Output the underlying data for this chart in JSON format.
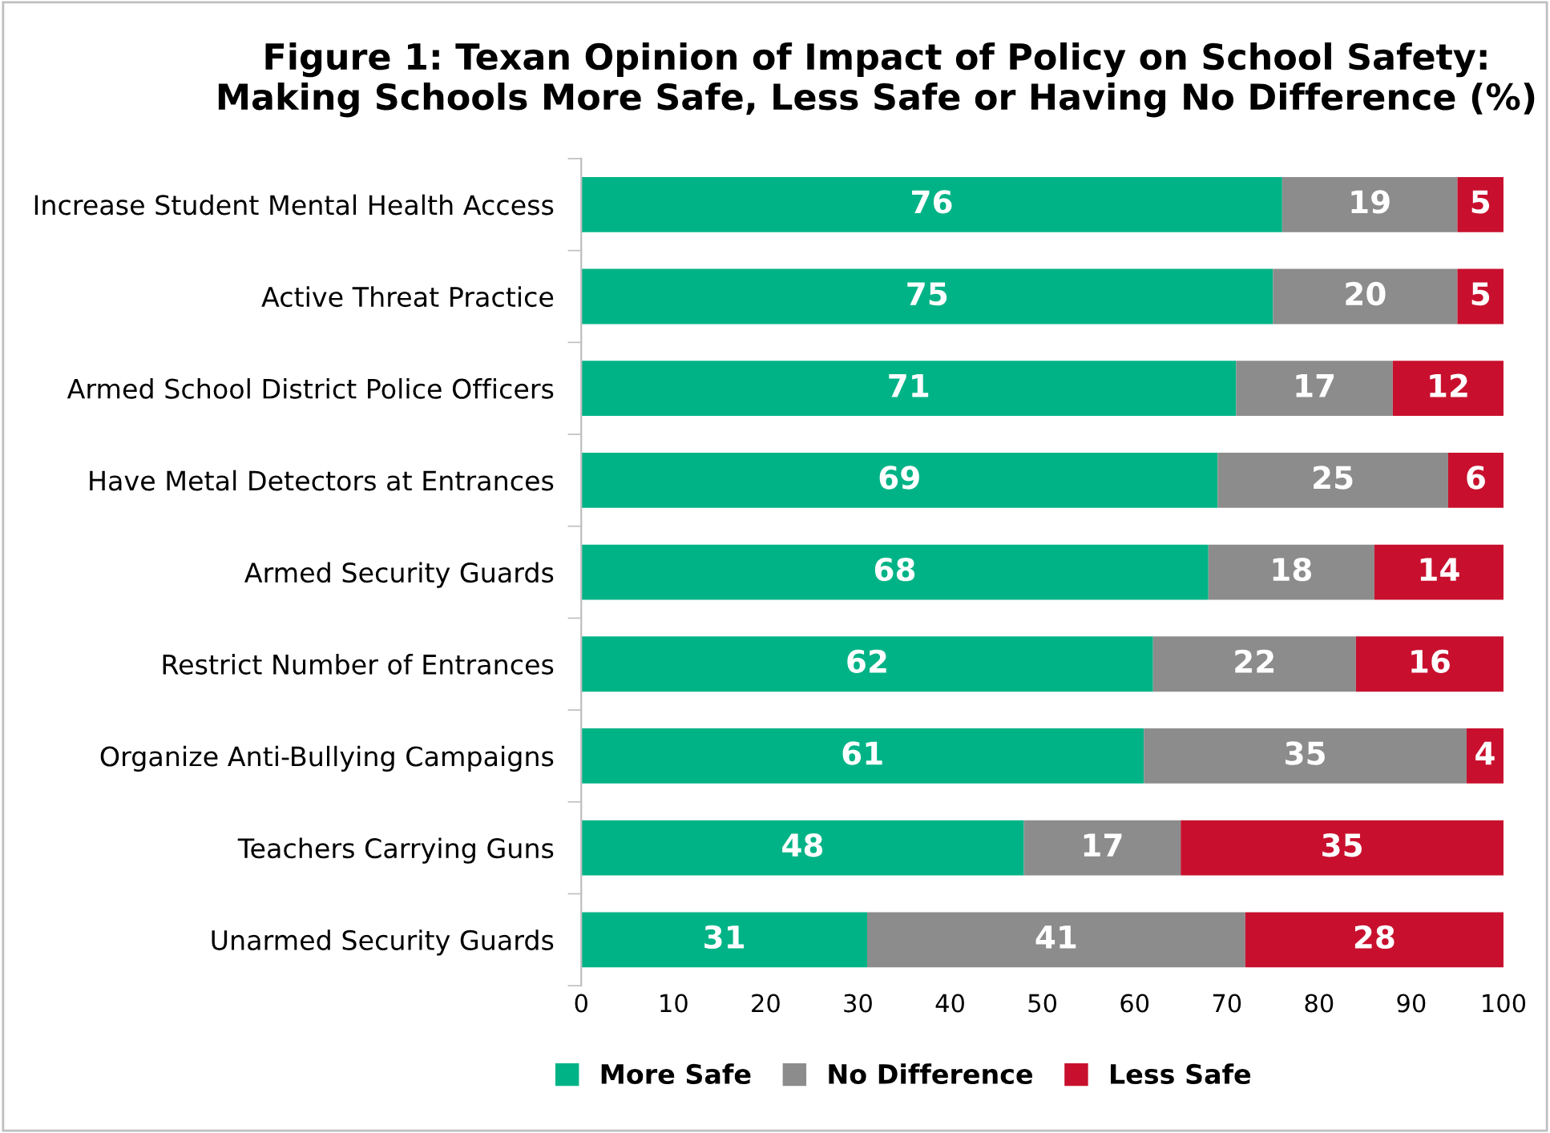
{
  "chart_data": {
    "type": "bar",
    "orientation": "horizontal",
    "stacked": true,
    "title": "Figure 1: Texan Opinion of Impact of Policy on School Safety:\nMaking Schools More Safe, Less Safe or Having No Difference (%)",
    "categories": [
      "Increase Student Mental Health Access",
      "Active Threat Practice",
      "Armed School District Police Officers",
      "Have Metal Detectors at Entrances",
      "Armed Security Guards",
      "Restrict Number of Entrances",
      "Organize Anti-Bullying Campaigns",
      "Teachers Carrying Guns",
      "Unarmed Security Guards"
    ],
    "series": [
      {
        "name": "More Safe",
        "color": "#00b386",
        "values": [
          76,
          75,
          71,
          69,
          68,
          62,
          61,
          48,
          31
        ]
      },
      {
        "name": "No Difference",
        "color": "#8c8c8c",
        "values": [
          19,
          20,
          17,
          25,
          18,
          22,
          35,
          17,
          41
        ]
      },
      {
        "name": "Less Safe",
        "color": "#c8102e",
        "values": [
          5,
          5,
          12,
          6,
          14,
          16,
          4,
          35,
          28
        ]
      }
    ],
    "xlim": [
      0,
      100
    ],
    "xticks": [
      0,
      10,
      20,
      30,
      40,
      50,
      60,
      70,
      80,
      90,
      100
    ],
    "data_labels": true,
    "legend": "bottom"
  }
}
